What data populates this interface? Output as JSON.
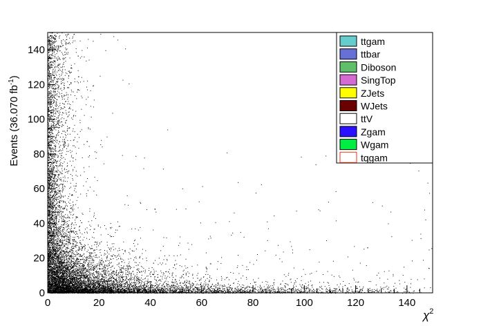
{
  "chart_data": {
    "type": "scatter",
    "title": "",
    "xlabel": "χ",
    "xlabel_sup": "2",
    "ylabel": "Events (36.070 fb",
    "ylabel_sup": "-1",
    "ylabel_end": ")",
    "xlim": [
      0,
      150
    ],
    "ylim": [
      0,
      150
    ],
    "x_ticks": [
      0,
      20,
      40,
      60,
      80,
      100,
      120,
      140
    ],
    "y_ticks": [
      0,
      20,
      40,
      60,
      80,
      100,
      120,
      140
    ],
    "grid": false,
    "legend_position": "top-right",
    "point_color": "#000000",
    "description_points": "dense scatter concentrated at low x and low y, thinning out toward larger values",
    "density_profile": {
      "x_decay_scale": 14,
      "y_decay_scale": 6,
      "cluster_corner": [
        0,
        0
      ]
    },
    "legend": [
      {
        "name": "ttgam",
        "color": "#66cccc",
        "style": "fill"
      },
      {
        "name": "ttbar",
        "color": "#6670d6",
        "style": "fill"
      },
      {
        "name": "Diboson",
        "color": "#5fbf6a",
        "style": "fill"
      },
      {
        "name": "SingTop",
        "color": "#d36bd3",
        "style": "fill"
      },
      {
        "name": "ZJets",
        "color": "#ffff00",
        "style": "fill"
      },
      {
        "name": "WJets",
        "color": "#6b0000",
        "style": "fill"
      },
      {
        "name": "ttV",
        "color": "#ffffff",
        "style": "fill"
      },
      {
        "name": "Zgam",
        "color": "#2a10ff",
        "style": "fill"
      },
      {
        "name": "Wgam",
        "color": "#00ee44",
        "style": "fill"
      },
      {
        "name": "tqgam",
        "color": "#ee3311",
        "style": "line"
      }
    ]
  }
}
